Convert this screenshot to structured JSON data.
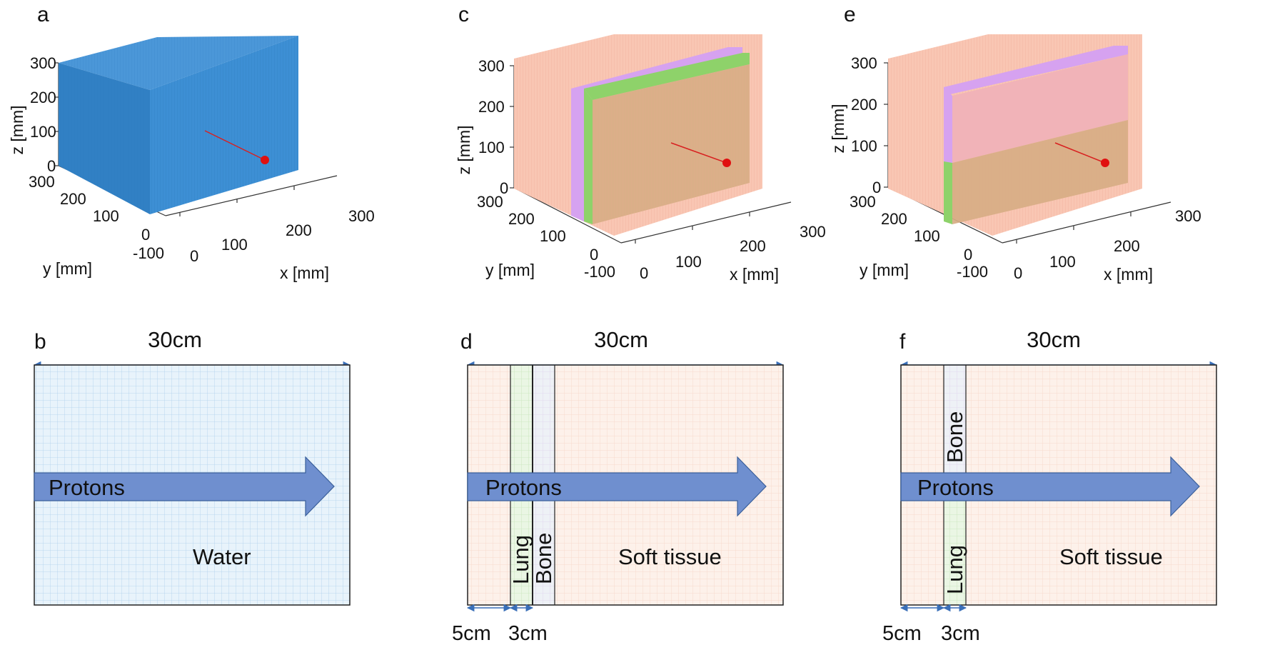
{
  "colors": {
    "water": "#3d8fd4",
    "water_top": "#4b97d8",
    "water_side": "#3483c6",
    "soft_tissue": "#f7b7a3",
    "lung": "#8ed26a",
    "bone": "#d6a2f0",
    "overlay_tan": "#d7ad84",
    "overlay_pink": "#f1b3b8",
    "beam_dot": "#e01010",
    "proton_arrow": "#6f8fcf",
    "dim_arrow": "#3a6fb8"
  },
  "panels": {
    "a": {
      "letter": "a",
      "x_label": "x [mm]",
      "y_label": "y [mm]",
      "z_label": "z [mm]",
      "z_ticks": [
        "0",
        "100",
        "200",
        "300"
      ],
      "y_ticks": [
        "300",
        "200",
        "100",
        "0",
        "-100"
      ],
      "x_ticks": [
        "0",
        "100",
        "200",
        "300"
      ]
    },
    "c": {
      "letter": "c",
      "x_label": "x [mm]",
      "y_label": "y [mm]",
      "z_label": "z [mm]",
      "z_ticks": [
        "0",
        "100",
        "200",
        "300"
      ],
      "y_ticks": [
        "300",
        "200",
        "100",
        "0",
        "-100"
      ],
      "x_ticks": [
        "0",
        "100",
        "200",
        "300"
      ]
    },
    "e": {
      "letter": "e",
      "x_label": "x [mm]",
      "y_label": "y [mm]",
      "z_label": "z [mm]",
      "z_ticks": [
        "0",
        "100",
        "200",
        "300"
      ],
      "y_ticks": [
        "300",
        "200",
        "100",
        "0",
        "-100"
      ],
      "x_ticks": [
        "0",
        "100",
        "200",
        "300"
      ]
    },
    "b": {
      "letter": "b",
      "width_label": "30cm",
      "arrow_label": "Protons",
      "material_label": "Water"
    },
    "d": {
      "letter": "d",
      "width_label": "30cm",
      "arrow_label": "Protons",
      "lung_label": "Lung",
      "bone_label": "Bone",
      "tissue_label": "Soft tissue",
      "offset_label": "5cm",
      "thickness_label": "3cm"
    },
    "f": {
      "letter": "f",
      "width_label": "30cm",
      "arrow_label": "Protons",
      "lung_label": "Lung",
      "bone_label": "Bone",
      "tissue_label": "Soft tissue",
      "offset_label": "5cm",
      "thickness_label": "3cm"
    }
  }
}
